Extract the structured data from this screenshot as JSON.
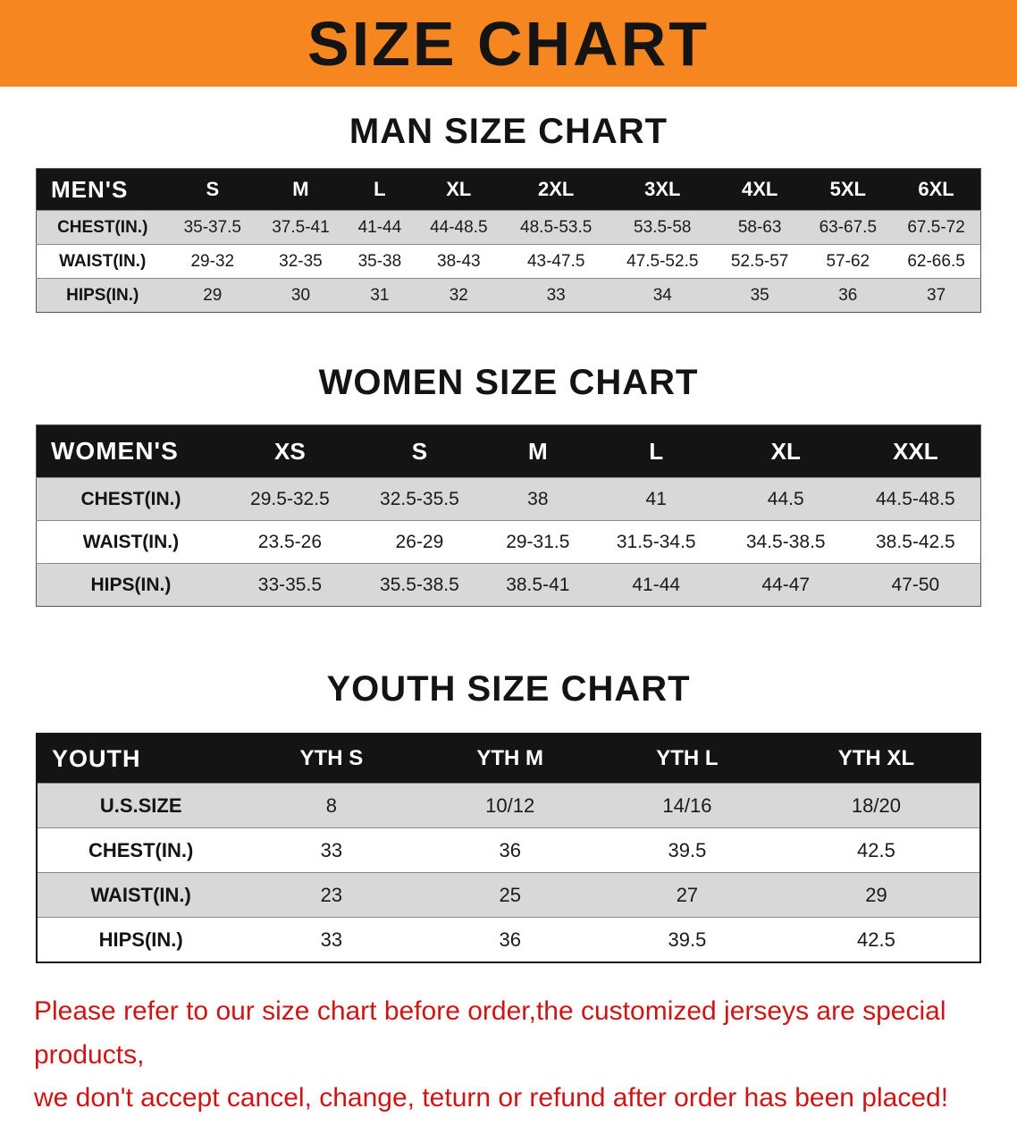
{
  "banner": {
    "title": "SIZE CHART"
  },
  "colors": {
    "banner_bg": "#f6861f",
    "table_header_bg": "#141414",
    "row_shade_bg": "#d8d8d8",
    "disclaimer_red": "#cc1616"
  },
  "sections": [
    {
      "heading": "MAN SIZE CHART",
      "table": {
        "header_label": "MEN'S",
        "columns": [
          "S",
          "M",
          "L",
          "XL",
          "2XL",
          "3XL",
          "4XL",
          "5XL",
          "6XL"
        ],
        "rows": [
          {
            "label": "CHEST(IN.)",
            "values": [
              "35-37.5",
              "37.5-41",
              "41-44",
              "44-48.5",
              "48.5-53.5",
              "53.5-58",
              "58-63",
              "63-67.5",
              "67.5-72"
            ]
          },
          {
            "label": "WAIST(IN.)",
            "values": [
              "29-32",
              "32-35",
              "35-38",
              "38-43",
              "43-47.5",
              "47.5-52.5",
              "52.5-57",
              "57-62",
              "62-66.5"
            ]
          },
          {
            "label": "HIPS(IN.)",
            "values": [
              "29",
              "30",
              "31",
              "32",
              "33",
              "34",
              "35",
              "36",
              "37"
            ]
          }
        ]
      }
    },
    {
      "heading": "WOMEN SIZE CHART",
      "table": {
        "header_label": "WOMEN'S",
        "columns": [
          "XS",
          "S",
          "M",
          "L",
          "XL",
          "XXL"
        ],
        "rows": [
          {
            "label": "CHEST(IN.)",
            "values": [
              "29.5-32.5",
              "32.5-35.5",
              "38",
              "41",
              "44.5",
              "44.5-48.5"
            ]
          },
          {
            "label": "WAIST(IN.)",
            "values": [
              "23.5-26",
              "26-29",
              "29-31.5",
              "31.5-34.5",
              "34.5-38.5",
              "38.5-42.5"
            ]
          },
          {
            "label": "HIPS(IN.)",
            "values": [
              "33-35.5",
              "35.5-38.5",
              "38.5-41",
              "41-44",
              "44-47",
              "47-50"
            ]
          }
        ]
      }
    },
    {
      "heading": "YOUTH SIZE CHART",
      "table": {
        "header_label": "YOUTH",
        "columns": [
          "YTH S",
          "YTH M",
          "YTH L",
          "YTH XL"
        ],
        "rows": [
          {
            "label": "U.S.SIZE",
            "values": [
              "8",
              "10/12",
              "14/16",
              "18/20"
            ]
          },
          {
            "label": "CHEST(IN.)",
            "values": [
              "33",
              "36",
              "39.5",
              "42.5"
            ]
          },
          {
            "label": "WAIST(IN.)",
            "values": [
              "23",
              "25",
              "27",
              "29"
            ]
          },
          {
            "label": "HIPS(IN.)",
            "values": [
              "33",
              "36",
              "39.5",
              "42.5"
            ]
          }
        ]
      }
    }
  ],
  "disclaimer": {
    "line1": "Please refer to our size chart before order,the customized jerseys are special products,",
    "line2": "we don't accept cancel, change, teturn or refund after order has been placed!"
  }
}
